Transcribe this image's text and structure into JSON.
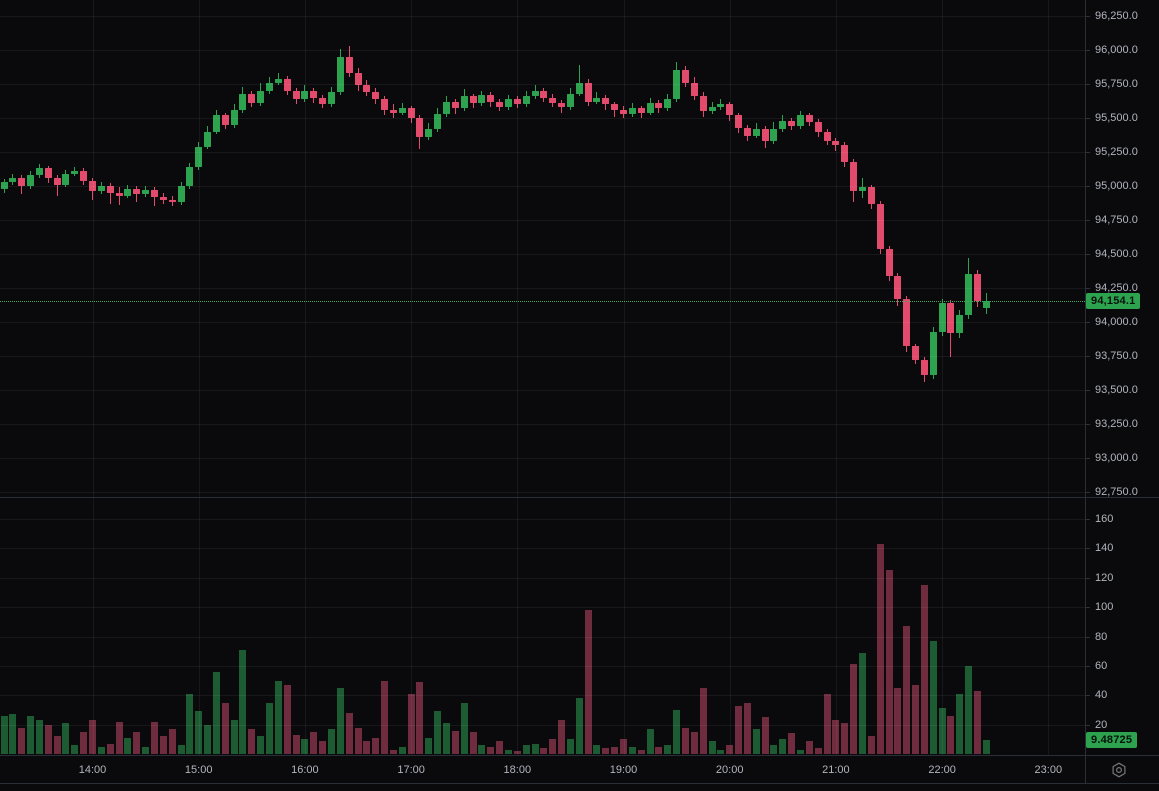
{
  "chart": {
    "colors": {
      "background": "#0a0a0c",
      "up": "#2da24f",
      "down": "#e24b6c",
      "volume_up": "#1d5c33",
      "volume_down": "#6e2c3e",
      "badge_up": "#2da24f",
      "axis_text": "#b2b5be",
      "grid": "rgba(255,255,255,0.06)",
      "separator": "#2a2e39",
      "last_price_line": "#3cab5e"
    },
    "last_price_label": "94,154.1",
    "last_volume_label": "9.48725",
    "price_axis_ticks": [
      {
        "label": "96,250.0",
        "value": 96250
      },
      {
        "label": "96,000.0",
        "value": 96000
      },
      {
        "label": "95,750.0",
        "value": 95750
      },
      {
        "label": "95,500.0",
        "value": 95500
      },
      {
        "label": "95,250.0",
        "value": 95250
      },
      {
        "label": "95,000.0",
        "value": 95000
      },
      {
        "label": "94,750.0",
        "value": 94750
      },
      {
        "label": "94,500.0",
        "value": 94500
      },
      {
        "label": "94,250.0",
        "value": 94250
      },
      {
        "label": "94,000.0",
        "value": 94000
      },
      {
        "label": "93,750.0",
        "value": 93750
      },
      {
        "label": "93,500.0",
        "value": 93500
      },
      {
        "label": "93,250.0",
        "value": 93250
      },
      {
        "label": "93,000.0",
        "value": 93000
      },
      {
        "label": "92,750.0",
        "value": 92750
      }
    ],
    "volume_axis_ticks": [
      {
        "label": "160",
        "value": 160
      },
      {
        "label": "140",
        "value": 140
      },
      {
        "label": "120",
        "value": 120
      },
      {
        "label": "100",
        "value": 100
      },
      {
        "label": "80",
        "value": 80
      },
      {
        "label": "60",
        "value": 60
      },
      {
        "label": "40",
        "value": 40
      },
      {
        "label": "20",
        "value": 20
      }
    ],
    "time_axis_ticks": [
      {
        "label": "14:00",
        "hour": 14
      },
      {
        "label": "15:00",
        "hour": 15
      },
      {
        "label": "16:00",
        "hour": 16
      },
      {
        "label": "17:00",
        "hour": 17
      },
      {
        "label": "18:00",
        "hour": 18
      },
      {
        "label": "19:00",
        "hour": 19
      },
      {
        "label": "20:00",
        "hour": 20
      },
      {
        "label": "21:00",
        "hour": 21
      },
      {
        "label": "22:00",
        "hour": 22
      },
      {
        "label": "23:00",
        "hour": 23
      }
    ]
  },
  "chart_data": {
    "type": "candlestick",
    "interval": "5m",
    "start_time": "13:10",
    "end_time": "22:25",
    "price_axis_range_visible": [
      92713,
      96368
    ],
    "volume_axis_range": [
      0,
      160
    ],
    "last_price": 94154.1,
    "last_volume": 9.48725,
    "grid": true,
    "columns": [
      "open",
      "high",
      "low",
      "close",
      "volume"
    ],
    "candles": [
      [
        94980,
        95050,
        94950,
        95030,
        26
      ],
      [
        95030,
        95090,
        95010,
        95060,
        27
      ],
      [
        95060,
        95080,
        94940,
        95000,
        18
      ],
      [
        95000,
        95110,
        94980,
        95080,
        26
      ],
      [
        95080,
        95160,
        95060,
        95130,
        23
      ],
      [
        95130,
        95150,
        95020,
        95060,
        20
      ],
      [
        95060,
        95080,
        94930,
        95010,
        12
      ],
      [
        95010,
        95120,
        94990,
        95090,
        21
      ],
      [
        95090,
        95140,
        95070,
        95110,
        6
      ],
      [
        95110,
        95130,
        95010,
        95040,
        15
      ],
      [
        95040,
        95060,
        94900,
        94960,
        23
      ],
      [
        94960,
        95030,
        94940,
        95000,
        5
      ],
      [
        95000,
        95020,
        94870,
        94950,
        7
      ],
      [
        94950,
        94990,
        94860,
        94930,
        22
      ],
      [
        94930,
        95010,
        94910,
        94980,
        11
      ],
      [
        94980,
        95000,
        94880,
        94940,
        15
      ],
      [
        94940,
        95000,
        94920,
        94970,
        5
      ],
      [
        94970,
        94990,
        94850,
        94920,
        22
      ],
      [
        94920,
        94950,
        94870,
        94900,
        12
      ],
      [
        94900,
        94930,
        94850,
        94880,
        17
      ],
      [
        94880,
        95030,
        94860,
        95000,
        6
      ],
      [
        95000,
        95170,
        94980,
        95140,
        41
      ],
      [
        95140,
        95320,
        95120,
        95290,
        29
      ],
      [
        95290,
        95440,
        95270,
        95400,
        20
      ],
      [
        95400,
        95560,
        95380,
        95520,
        56
      ],
      [
        95520,
        95540,
        95420,
        95450,
        35
      ],
      [
        95450,
        95600,
        95430,
        95560,
        23
      ],
      [
        95560,
        95730,
        95540,
        95680,
        71
      ],
      [
        95680,
        95700,
        95580,
        95610,
        17
      ],
      [
        95610,
        95760,
        95590,
        95700,
        12
      ],
      [
        95700,
        95800,
        95680,
        95760,
        35
      ],
      [
        95760,
        95830,
        95740,
        95790,
        50
      ],
      [
        95790,
        95810,
        95670,
        95700,
        47
      ],
      [
        95700,
        95720,
        95600,
        95640,
        13
      ],
      [
        95640,
        95740,
        95620,
        95700,
        10
      ],
      [
        95700,
        95720,
        95610,
        95650,
        15
      ],
      [
        95650,
        95670,
        95570,
        95600,
        9
      ],
      [
        95600,
        95730,
        95580,
        95690,
        17
      ],
      [
        95690,
        96010,
        95670,
        95950,
        45
      ],
      [
        95950,
        96030,
        95800,
        95830,
        28
      ],
      [
        95830,
        95870,
        95700,
        95740,
        18
      ],
      [
        95740,
        95780,
        95660,
        95690,
        9
      ],
      [
        95690,
        95720,
        95600,
        95640,
        11
      ],
      [
        95640,
        95660,
        95520,
        95560,
        50
      ],
      [
        95560,
        95600,
        95500,
        95540,
        3
      ],
      [
        95540,
        95610,
        95520,
        95570,
        5
      ],
      [
        95570,
        95590,
        95460,
        95500,
        41
      ],
      [
        95500,
        95520,
        95270,
        95360,
        49
      ],
      [
        95360,
        95460,
        95340,
        95420,
        11
      ],
      [
        95420,
        95570,
        95400,
        95530,
        29
      ],
      [
        95530,
        95660,
        95510,
        95620,
        21
      ],
      [
        95620,
        95640,
        95530,
        95570,
        16
      ],
      [
        95570,
        95710,
        95550,
        95660,
        35
      ],
      [
        95660,
        95680,
        95570,
        95610,
        15
      ],
      [
        95610,
        95700,
        95590,
        95670,
        6
      ],
      [
        95670,
        95690,
        95580,
        95620,
        5
      ],
      [
        95620,
        95640,
        95550,
        95580,
        9
      ],
      [
        95580,
        95670,
        95560,
        95640,
        3
      ],
      [
        95640,
        95660,
        95570,
        95600,
        2
      ],
      [
        95600,
        95700,
        95580,
        95660,
        6
      ],
      [
        95660,
        95740,
        95640,
        95700,
        7
      ],
      [
        95700,
        95720,
        95620,
        95650,
        4
      ],
      [
        95650,
        95680,
        95580,
        95610,
        10
      ],
      [
        95610,
        95630,
        95540,
        95580,
        23
      ],
      [
        95580,
        95720,
        95560,
        95680,
        10
      ],
      [
        95680,
        95890,
        95660,
        95760,
        38
      ],
      [
        95760,
        95790,
        95590,
        95620,
        98
      ],
      [
        95620,
        95690,
        95600,
        95650,
        6
      ],
      [
        95650,
        95670,
        95560,
        95600,
        4
      ],
      [
        95600,
        95620,
        95510,
        95560,
        5
      ],
      [
        95560,
        95590,
        95500,
        95530,
        10
      ],
      [
        95530,
        95610,
        95510,
        95570,
        5
      ],
      [
        95570,
        95590,
        95500,
        95540,
        3
      ],
      [
        95540,
        95650,
        95520,
        95610,
        17
      ],
      [
        95610,
        95630,
        95540,
        95570,
        5
      ],
      [
        95570,
        95680,
        95550,
        95640,
        6
      ],
      [
        95640,
        95910,
        95620,
        95855,
        30
      ],
      [
        95855,
        95880,
        95730,
        95760,
        18
      ],
      [
        95760,
        95800,
        95630,
        95660,
        15
      ],
      [
        95660,
        95690,
        95510,
        95550,
        45
      ],
      [
        95550,
        95620,
        95530,
        95580,
        9
      ],
      [
        95580,
        95640,
        95560,
        95600,
        3
      ],
      [
        95600,
        95620,
        95480,
        95520,
        6
      ],
      [
        95520,
        95540,
        95390,
        95430,
        33
      ],
      [
        95430,
        95450,
        95330,
        95370,
        35
      ],
      [
        95370,
        95460,
        95350,
        95420,
        17
      ],
      [
        95420,
        95440,
        95280,
        95330,
        25
      ],
      [
        95330,
        95470,
        95310,
        95420,
        6
      ],
      [
        95420,
        95520,
        95400,
        95480,
        10
      ],
      [
        95480,
        95500,
        95410,
        95440,
        14
      ],
      [
        95440,
        95550,
        95420,
        95520,
        3
      ],
      [
        95520,
        95540,
        95440,
        95470,
        9
      ],
      [
        95470,
        95490,
        95360,
        95400,
        4
      ],
      [
        95400,
        95420,
        95300,
        95330,
        41
      ],
      [
        95330,
        95350,
        95260,
        95300,
        23
      ],
      [
        95300,
        95320,
        95140,
        95180,
        21
      ],
      [
        95180,
        95200,
        94880,
        94960,
        61
      ],
      [
        94960,
        95060,
        94910,
        94990,
        69
      ],
      [
        94990,
        95010,
        94830,
        94870,
        12
      ],
      [
        94870,
        94890,
        94500,
        94540,
        143
      ],
      [
        94540,
        94560,
        94300,
        94340,
        125
      ],
      [
        94340,
        94360,
        94120,
        94170,
        45
      ],
      [
        94170,
        94190,
        93780,
        93820,
        87
      ],
      [
        93820,
        93840,
        93690,
        93720,
        47
      ],
      [
        93720,
        93740,
        93560,
        93610,
        115
      ],
      [
        93610,
        93960,
        93580,
        93930,
        77
      ],
      [
        93930,
        94170,
        93900,
        94140,
        31
      ],
      [
        94140,
        94160,
        93740,
        93920,
        26
      ],
      [
        93920,
        94090,
        93880,
        94050,
        41
      ],
      [
        94050,
        94470,
        94020,
        94355,
        60
      ],
      [
        94355,
        94380,
        94110,
        94155,
        43
      ],
      [
        94100,
        94210,
        94060,
        94154.1,
        9.48725
      ]
    ]
  }
}
